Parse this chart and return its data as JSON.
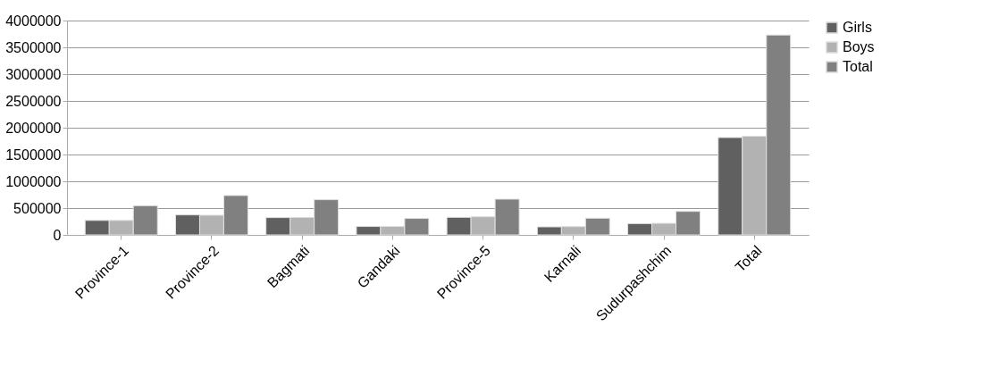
{
  "chart_data": {
    "type": "bar",
    "categories": [
      "Province-1",
      "Province-2",
      "Bagmati",
      "Gandaki",
      "Province-5",
      "Karnali",
      "Sudurpashchim",
      "Total"
    ],
    "series": [
      {
        "name": "Girls",
        "color": "#606060",
        "values": [
          270000,
          373000,
          323000,
          157000,
          328000,
          150000,
          211000,
          1817000
        ]
      },
      {
        "name": "Boys",
        "color": "#b2b2b2",
        "values": [
          270000,
          367000,
          327000,
          157000,
          339000,
          155000,
          216000,
          1840000
        ]
      },
      {
        "name": "Total",
        "color": "#808080",
        "values": [
          545000,
          735000,
          657000,
          307000,
          667000,
          311000,
          438000,
          3730000
        ]
      }
    ],
    "ylim": [
      0,
      4000000
    ],
    "yticks": [
      0,
      500000,
      1000000,
      1500000,
      2000000,
      2500000,
      3000000,
      3500000,
      4000000
    ],
    "grid": "y",
    "legend": "right"
  }
}
